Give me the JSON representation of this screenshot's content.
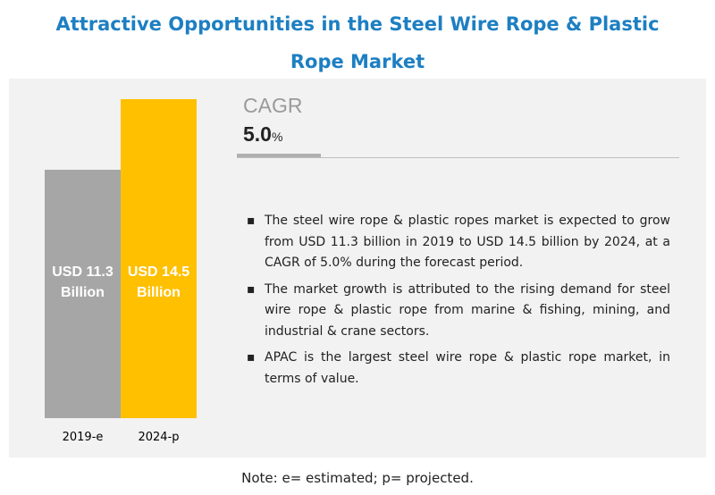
{
  "chart_data": {
    "type": "bar",
    "title": "Attractive Opportunities in the Steel Wire Rope & Plastic Rope Market",
    "categories": [
      "2019-e",
      "2024-p"
    ],
    "values": [
      11.3,
      14.5
    ],
    "value_labels": [
      "USD 11.3 Billion",
      "USD 14.5 Billion"
    ],
    "colors": [
      "#a6a6a6",
      "#ffc000"
    ]
  },
  "cagr": {
    "label": "CAGR",
    "value": "5.0",
    "unit": "%"
  },
  "bullets": [
    "The steel wire rope & plastic ropes market is expected to grow from USD 11.3 billion in 2019 to USD 14.5 billion by 2024, at a CAGR of 5.0% during the forecast period.",
    "The market growth is attributed to the rising demand for steel wire rope & plastic rope from marine & fishing, mining, and industrial & crane sectors.",
    "APAC is the largest steel wire rope & plastic rope market, in terms of value."
  ],
  "note": "Note: e= estimated; p= projected."
}
